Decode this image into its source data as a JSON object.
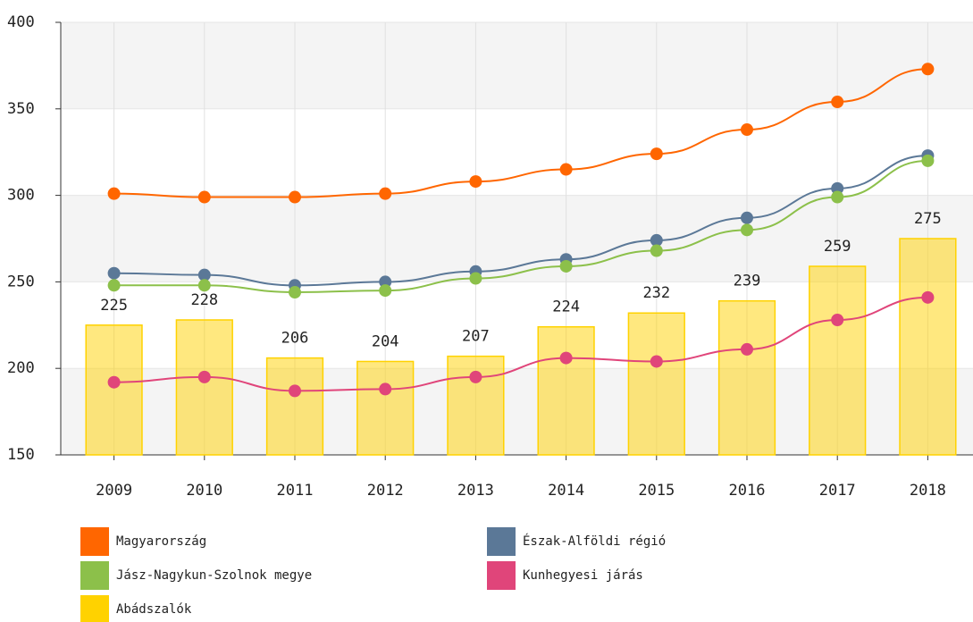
{
  "chart_data": {
    "type": "combo",
    "categories": [
      "2009",
      "2010",
      "2011",
      "2012",
      "2013",
      "2014",
      "2015",
      "2016",
      "2017",
      "2018"
    ],
    "ylim": [
      150,
      400
    ],
    "yticks": [
      150,
      200,
      250,
      300,
      350,
      400
    ],
    "grid": true,
    "series": [
      {
        "name": "Magyarország",
        "type": "line",
        "color": "#ff6600",
        "values": [
          301,
          299,
          299,
          301,
          308,
          315,
          324,
          338,
          354,
          373
        ]
      },
      {
        "name": "Észak-Alföldi régió",
        "type": "line",
        "color": "#5b7897",
        "values": [
          255,
          254,
          248,
          250,
          256,
          263,
          274,
          287,
          304,
          323
        ]
      },
      {
        "name": "Jász-Nagykun-Szolnok megye",
        "type": "line",
        "color": "#8cc04a",
        "values": [
          248,
          248,
          244,
          245,
          252,
          259,
          268,
          280,
          299,
          320
        ]
      },
      {
        "name": "Kunhegyesi járás",
        "type": "line",
        "color": "#e0457a",
        "values": [
          192,
          195,
          187,
          188,
          195,
          206,
          204,
          211,
          228,
          241
        ]
      },
      {
        "name": "Abádszalók",
        "type": "bar",
        "color": "#ffd200",
        "values": [
          225,
          228,
          206,
          204,
          207,
          224,
          232,
          239,
          259,
          275
        ]
      }
    ]
  }
}
